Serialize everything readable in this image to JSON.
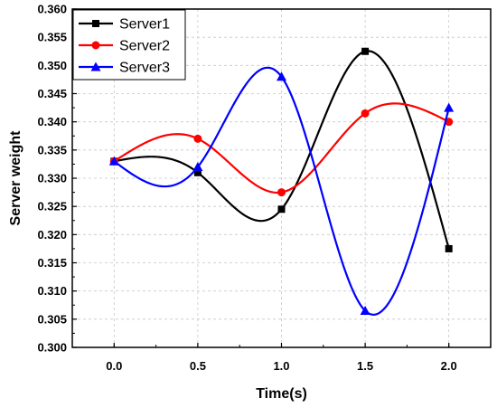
{
  "chart_data": {
    "type": "line",
    "xlabel": "Time(s)",
    "ylabel": "Server weight",
    "xlim": [
      -0.25,
      2.25
    ],
    "ylim": [
      0.3,
      0.36
    ],
    "xticks": [
      "0.0",
      "0.5",
      "1.0",
      "1.5",
      "2.0"
    ],
    "yticks": [
      "0.300",
      "0.305",
      "0.310",
      "0.315",
      "0.320",
      "0.325",
      "0.330",
      "0.335",
      "0.340",
      "0.345",
      "0.350",
      "0.355",
      "0.360"
    ],
    "grid": true,
    "smooth": true,
    "legend": "top-left",
    "x": [
      0.0,
      0.5,
      1.0,
      1.5,
      2.0
    ],
    "series": [
      {
        "name": "Server1",
        "color": "#000000",
        "marker": "square",
        "values": [
          0.333,
          0.331,
          0.3245,
          0.3525,
          0.3175
        ]
      },
      {
        "name": "Server2",
        "color": "#ff0000",
        "marker": "circle",
        "values": [
          0.333,
          0.337,
          0.3275,
          0.3415,
          0.34
        ]
      },
      {
        "name": "Server3",
        "color": "#0000ff",
        "marker": "triangle",
        "values": [
          0.333,
          0.332,
          0.348,
          0.3065,
          0.3425
        ]
      }
    ]
  }
}
